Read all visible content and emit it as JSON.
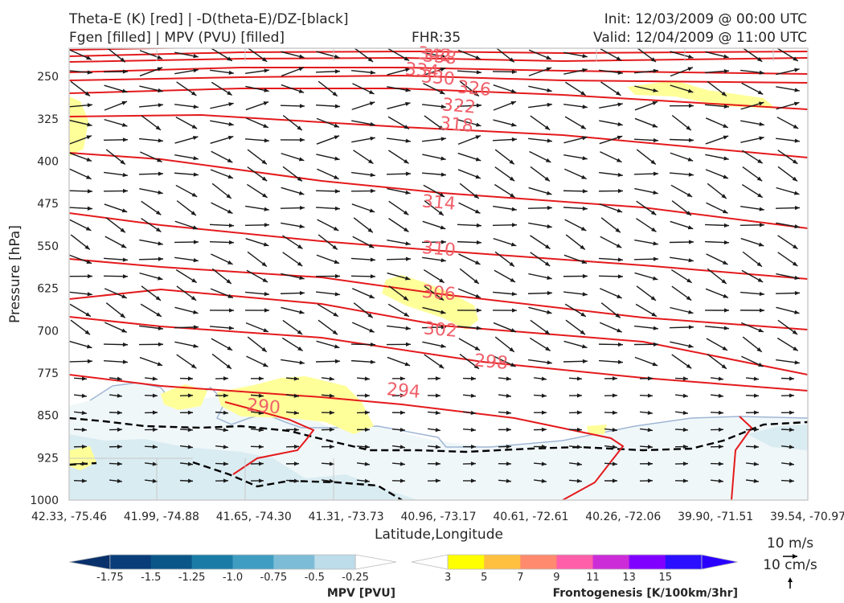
{
  "header": {
    "left_line1": "Theta-E (K) [red] | -D(theta-E)/DZ-[black]",
    "left_line2": "Fgen [filled] | MPV (PVU) [filled]",
    "center": "FHR:35",
    "right_line1": "Init: 12/03/2009 @ 00:00 UTC",
    "right_line2": "Valid: 12/04/2009 @ 11:00 UTC"
  },
  "chart_data": {
    "type": "cross-section",
    "ylabel": "Pressure [hPa]",
    "xlabel": "Latitude,Longitude",
    "y_ticks": [
      "250",
      "325",
      "400",
      "475",
      "550",
      "625",
      "700",
      "775",
      "850",
      "925",
      "1000"
    ],
    "x_ticks": [
      "42.33, -75.46",
      "41.99, -74.88",
      "41.65, -74.30",
      "41.31, -73.73",
      "40.96, -73.17",
      "40.61, -72.61",
      "40.26, -72.06",
      "39.90, -71.51",
      "39.54, -70.97"
    ],
    "ylim": [
      1000,
      200
    ],
    "theta_e_contours": [
      {
        "label": "342",
        "pressure_at_label": 210
      },
      {
        "label": "338",
        "pressure_at_label": 214
      },
      {
        "label": "334",
        "pressure_at_label": 238
      },
      {
        "label": "330",
        "pressure_at_label": 251
      },
      {
        "label": "326",
        "pressure_at_label": 270
      },
      {
        "label": "322",
        "pressure_at_label": 301
      },
      {
        "label": "318",
        "pressure_at_label": 334
      },
      {
        "label": "314",
        "pressure_at_label": 472
      },
      {
        "label": "310",
        "pressure_at_label": 554
      },
      {
        "label": "306",
        "pressure_at_label": 632
      },
      {
        "label": "302",
        "pressure_at_label": 697
      },
      {
        "label": "298",
        "pressure_at_label": 754
      },
      {
        "label": "294",
        "pressure_at_label": 805
      },
      {
        "label": "290",
        "pressure_at_label": 833
      }
    ],
    "colors": {
      "theta_e": "#e41a1c",
      "theta_e_label": "#f0606a",
      "stability": "#000000",
      "fgen": "#ffff66",
      "mpv": "#d9ecf2"
    },
    "vector_scale": {
      "horizontal": "10 m/s",
      "vertical": "10 cm/s"
    }
  },
  "colorbars": {
    "mpv": {
      "label": "MPV [PVU]",
      "ticks": [
        "-1.75",
        "-1.5",
        "-1.25",
        "-1.0",
        "-0.75",
        "-0.5",
        "-0.25"
      ],
      "colors": [
        "#08306b",
        "#083d7a",
        "#0b5688",
        "#1a7ca6",
        "#3f9dc2",
        "#7dbcd6",
        "#bcdde9",
        "#ffffff"
      ]
    },
    "fgen": {
      "label": "Frontogenesis [K/100km/3hr]",
      "ticks": [
        "3",
        "5",
        "7",
        "9",
        "11",
        "13",
        "15"
      ],
      "colors": [
        "#ffffff",
        "#ffff00",
        "#ffc040",
        "#ff8a6e",
        "#ff5fa8",
        "#cc2cd8",
        "#8000ff",
        "#2a10ff",
        "#2a00ff"
      ]
    }
  }
}
